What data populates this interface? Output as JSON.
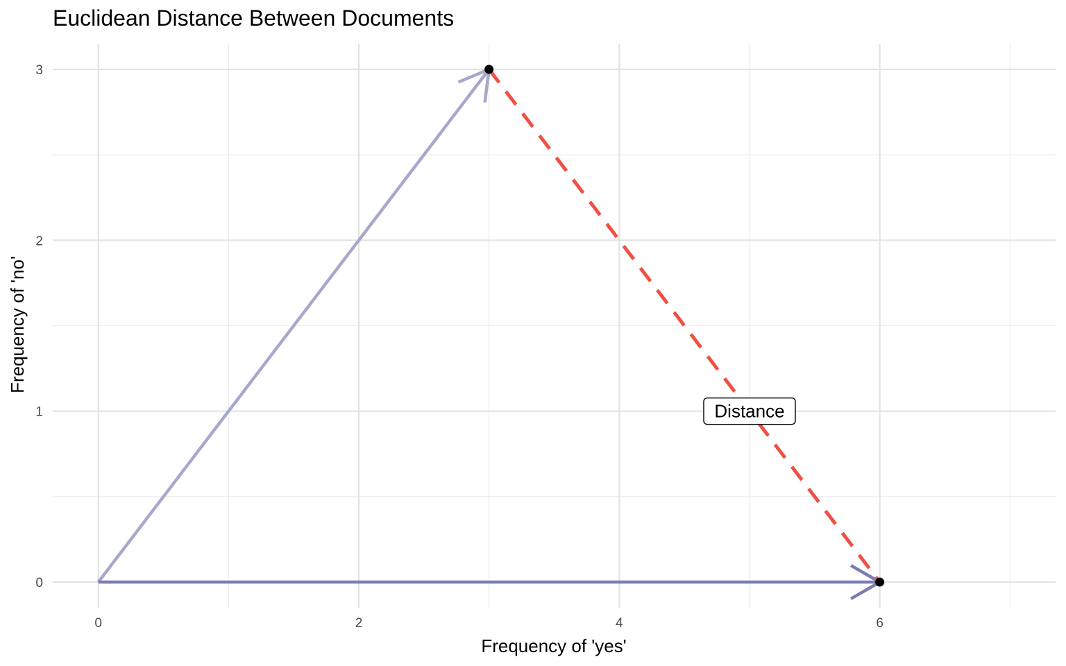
{
  "chart_data": {
    "type": "scatter",
    "title": "Euclidean Distance Between Documents",
    "xlabel": "Frequency of 'yes'",
    "ylabel": "Frequency of 'no'",
    "xlim": [
      -0.35,
      7.35
    ],
    "ylim": [
      -0.15,
      3.15
    ],
    "x_major_ticks": [
      0,
      2,
      4,
      6
    ],
    "x_minor_ticks": [
      1,
      3,
      5,
      7
    ],
    "y_major_ticks": [
      0,
      1,
      2,
      3
    ],
    "y_minor_ticks": [
      0.5,
      1.5,
      2.5
    ],
    "grid": true,
    "vectors": [
      {
        "from": [
          0,
          0
        ],
        "to": [
          3,
          3
        ],
        "color": "#a6a8cc"
      },
      {
        "from": [
          0,
          0
        ],
        "to": [
          6,
          0
        ],
        "color": "#7a7cb3"
      }
    ],
    "points": [
      {
        "x": 3,
        "y": 3,
        "color": "#000000"
      },
      {
        "x": 6,
        "y": 0,
        "color": "#000000"
      }
    ],
    "distance_line": {
      "from": [
        3,
        3
      ],
      "to": [
        6,
        0
      ],
      "color": "#f04f43",
      "style": "dashed"
    },
    "annotations": [
      {
        "text": "Distance",
        "x": 5,
        "y": 1
      }
    ]
  }
}
